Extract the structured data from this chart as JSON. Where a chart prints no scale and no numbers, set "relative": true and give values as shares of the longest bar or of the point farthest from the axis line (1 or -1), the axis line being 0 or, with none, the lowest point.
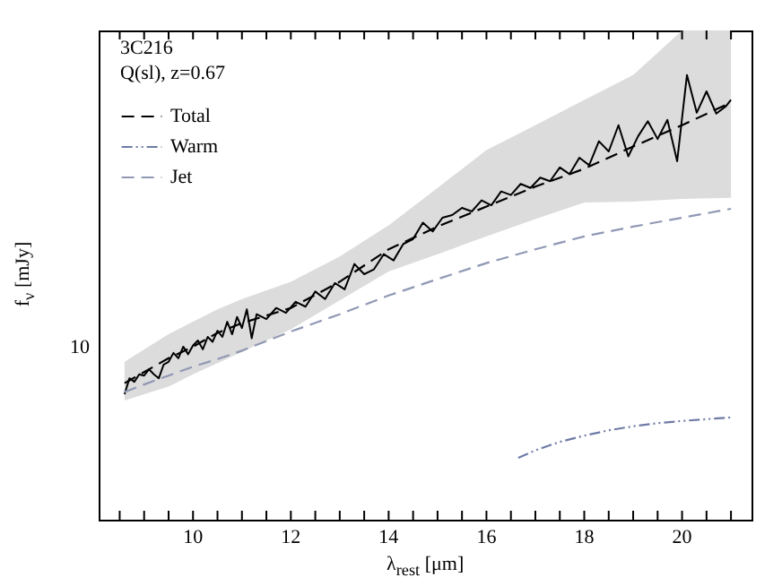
{
  "chart_data": {
    "type": "line",
    "title": "3C216",
    "subtitle": "Q(sl), z=0.67",
    "xlabel": "λ$_{rest}$ [μm]",
    "ylabel": "f$_{ν}$ [mJy]",
    "relative": true,
    "grid": false,
    "legend": "top left",
    "annotations": [
      "10"
    ],
    "xlim": [
      8.07,
      21.42
    ],
    "xticks": [
      {
        "value": 8.5,
        "label": null
      },
      {
        "value": 9,
        "label": null
      },
      {
        "value": 9.5,
        "label": null
      },
      10,
      {
        "value": 10.5,
        "label": null
      },
      {
        "value": 11,
        "label": null
      },
      {
        "value": 11.5,
        "label": null
      },
      12,
      {
        "value": 12.5,
        "label": null
      },
      {
        "value": 13,
        "label": null
      },
      {
        "value": 13.5,
        "label": null
      },
      14,
      {
        "value": 14.5,
        "label": null
      },
      {
        "value": 15,
        "label": null
      },
      {
        "value": 15.5,
        "label": null
      },
      16,
      {
        "value": 16.5,
        "label": null
      },
      {
        "value": 17,
        "label": null
      },
      {
        "value": 17.5,
        "label": null
      },
      18,
      {
        "value": 18.5,
        "label": null
      },
      {
        "value": 19,
        "label": null
      },
      {
        "value": 19.5,
        "label": null
      },
      20,
      {
        "value": 20.5,
        "label": null
      },
      {
        "value": 21,
        "label": null
      }
    ],
    "series": [
      {
        "color": "#000000",
        "line_style": "solid",
        "x": [
          8.6,
          8.7,
          8.8,
          8.9,
          9.0,
          9.1,
          9.2,
          9.3,
          9.4,
          9.5,
          9.6,
          9.7,
          9.8,
          9.9,
          10.0,
          10.1,
          10.2,
          10.3,
          10.4,
          10.5,
          10.6,
          10.7,
          10.8,
          10.9,
          11.0,
          11.1,
          11.2,
          11.3,
          11.5,
          11.7,
          11.9,
          12.1,
          12.3,
          12.5,
          12.7,
          12.9,
          13.1,
          13.3,
          13.5,
          13.7,
          13.9,
          14.1,
          14.3,
          14.5,
          14.7,
          14.9,
          15.1,
          15.3,
          15.5,
          15.7,
          15.9,
          16.1,
          16.3,
          16.5,
          16.7,
          16.9,
          17.1,
          17.3,
          17.5,
          17.7,
          17.9,
          18.1,
          18.3,
          18.5,
          18.7,
          18.9,
          19.1,
          19.3,
          19.5,
          19.7,
          19.9,
          20.1,
          20.3,
          20.5,
          20.7,
          20.9,
          21.0
        ],
        "values": [
          0.282,
          0.318,
          0.31,
          0.327,
          0.324,
          0.338,
          0.327,
          0.318,
          0.349,
          0.355,
          0.375,
          0.363,
          0.389,
          0.372,
          0.392,
          0.403,
          0.383,
          0.411,
          0.4,
          0.425,
          0.411,
          0.445,
          0.417,
          0.456,
          0.431,
          0.473,
          0.408,
          0.462,
          0.451,
          0.476,
          0.465,
          0.49,
          0.479,
          0.513,
          0.496,
          0.532,
          0.518,
          0.575,
          0.552,
          0.563,
          0.597,
          0.583,
          0.62,
          0.631,
          0.668,
          0.648,
          0.679,
          0.685,
          0.701,
          0.693,
          0.718,
          0.707,
          0.738,
          0.73,
          0.755,
          0.746,
          0.769,
          0.761,
          0.792,
          0.777,
          0.814,
          0.797,
          0.851,
          0.828,
          0.887,
          0.817,
          0.862,
          0.896,
          0.856,
          0.899,
          0.806,
          1.0,
          0.915,
          0.963,
          0.913,
          0.93,
          0.944
        ]
      },
      {
        "name": "Total",
        "color": "#000000",
        "line_style": "dashed",
        "x": [
          8.6,
          9.0,
          9.5,
          10,
          10.5,
          11,
          12,
          13,
          14,
          15,
          16,
          17,
          18,
          19,
          20,
          21
        ],
        "values": [
          0.307,
          0.332,
          0.363,
          0.389,
          0.42,
          0.442,
          0.476,
          0.535,
          0.608,
          0.659,
          0.704,
          0.749,
          0.789,
          0.839,
          0.887,
          0.938
        ],
        "lower": [
          0.268,
          0.282,
          0.299,
          0.327,
          0.352,
          0.377,
          0.428,
          0.493,
          0.558,
          0.597,
          0.637,
          0.676,
          0.713,
          0.715,
          0.721,
          0.724
        ],
        "upper": [
          0.355,
          0.383,
          0.417,
          0.445,
          0.473,
          0.496,
          0.535,
          0.592,
          0.662,
          0.746,
          0.831,
          0.887,
          0.944,
          1.0,
          1.1,
          1.1
        ]
      },
      {
        "name": "Warm",
        "color": "#6f7ba6",
        "line_style": "dotted",
        "x": [
          16.65,
          17.0,
          17.5,
          18.0,
          18.5,
          19.0,
          19.5,
          20.0,
          20.5,
          21.0
        ],
        "values": [
          0.139,
          0.156,
          0.175,
          0.189,
          0.201,
          0.21,
          0.217,
          0.222,
          0.226,
          0.23
        ]
      },
      {
        "name": "Jet",
        "color": "#9098b4",
        "line_style": "dashed",
        "x": [
          8.6,
          9.0,
          9.5,
          10,
          10.5,
          11,
          12,
          13,
          14,
          15,
          16,
          17,
          18,
          19,
          20,
          21
        ],
        "values": [
          0.287,
          0.304,
          0.324,
          0.344,
          0.361,
          0.38,
          0.423,
          0.462,
          0.504,
          0.541,
          0.577,
          0.608,
          0.637,
          0.659,
          0.679,
          0.699
        ]
      }
    ]
  }
}
